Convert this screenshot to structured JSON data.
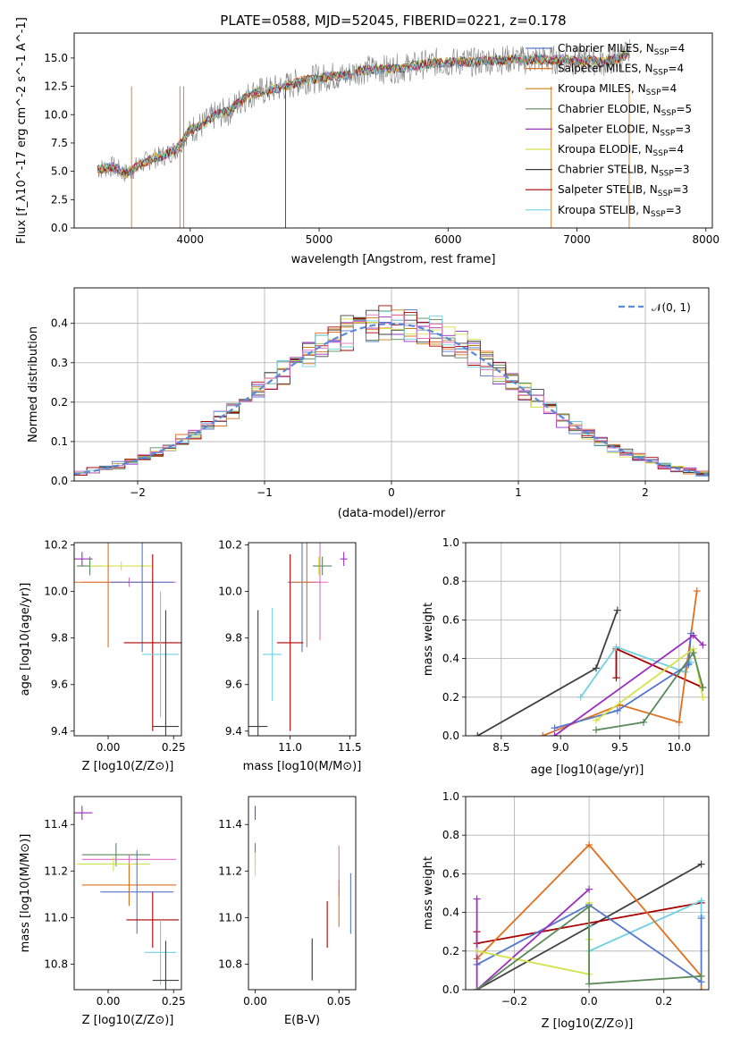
{
  "colors": {
    "Chabrier MILES": "#5577cc",
    "Salpeter MILES": "#e07020",
    "Kroupa MILES": "#c88010",
    "Chabrier ELODIE": "#5a8a5a",
    "Salpeter ELODIE": "#9b2fbf",
    "Kroupa ELODIE": "#d4e24a",
    "Chabrier STELIB": "#404040",
    "Salpeter STELIB": "#aa0000",
    "Kroupa STELIB": "#70d0e0",
    "pink": "#e070c0",
    "gauss": "#5b8ad8",
    "observed": "#808080"
  },
  "chart_data": [
    {
      "id": "spectrum",
      "type": "line",
      "title": "PLATE=0588, MJD=52045, FIBERID=0221, z=0.178",
      "xlabel": "wavelength [Angstrom, rest frame]",
      "ylabel": "Flux [f_λ10^-17 erg cm^-2 s^-1 A^-1]",
      "xlim": [
        3100,
        8050
      ],
      "ylim": [
        0,
        17.2
      ],
      "xticks": [
        "4000",
        "5000",
        "6000",
        "7000",
        "8000"
      ],
      "yticks": [
        "0.0",
        "2.5",
        "5.0",
        "7.5",
        "10.0",
        "12.5",
        "15.0"
      ],
      "grid": false,
      "legend_position": "right",
      "legend": [
        {
          "label": "Chabrier MILES, N",
          "sub": "SSP",
          "suffix": "=4",
          "color_key": "Chabrier MILES"
        },
        {
          "label": "Salpeter MILES, N",
          "sub": "SSP",
          "suffix": "=4",
          "color_key": "Salpeter MILES"
        },
        {
          "label": "Kroupa MILES, N",
          "sub": "SSP",
          "suffix": "=4",
          "color_key": "Kroupa MILES"
        },
        {
          "label": "Chabrier ELODIE, N",
          "sub": "SSP",
          "suffix": "=5",
          "color_key": "Chabrier ELODIE"
        },
        {
          "label": "Salpeter ELODIE, N",
          "sub": "SSP",
          "suffix": "=3",
          "color_key": "Salpeter ELODIE"
        },
        {
          "label": "Kroupa ELODIE, N",
          "sub": "SSP",
          "suffix": "=4",
          "color_key": "Kroupa ELODIE"
        },
        {
          "label": "Chabrier STELIB, N",
          "sub": "SSP",
          "suffix": "=3",
          "color_key": "Chabrier STELIB"
        },
        {
          "label": "Salpeter STELIB, N",
          "sub": "SSP",
          "suffix": "=3",
          "color_key": "Salpeter STELIB"
        },
        {
          "label": "Kroupa STELIB, N",
          "sub": "SSP",
          "suffix": "=3",
          "color_key": "Kroupa STELIB"
        }
      ],
      "series": [
        {
          "x": [
            3280,
            3400,
            3500,
            3600,
            3700,
            3800,
            3900,
            4000,
            4100,
            4200,
            4300,
            4400,
            4500,
            4600,
            4700,
            4800,
            4900,
            5000,
            5100,
            5200,
            5300,
            5400,
            5500,
            5600,
            5700,
            5800,
            5900,
            6000,
            6100,
            6200,
            6300,
            6400,
            6500,
            6600,
            6700,
            6800,
            6900,
            7000,
            7100,
            7200,
            7300,
            7400
          ],
          "y": [
            5.2,
            5.4,
            4.8,
            5.5,
            6.1,
            6.4,
            7.0,
            8.7,
            9.1,
            10.0,
            10.3,
            11.3,
            12.0,
            12.1,
            12.4,
            12.7,
            13.1,
            13.2,
            13.4,
            13.4,
            13.9,
            14.0,
            14.0,
            14.1,
            14.2,
            14.4,
            14.6,
            14.6,
            14.7,
            14.6,
            14.8,
            14.8,
            14.9,
            14.8,
            14.9,
            14.8,
            14.9,
            14.7,
            14.8,
            14.6,
            14.9,
            15.4
          ]
        }
      ]
    },
    {
      "id": "residuals",
      "type": "histogram",
      "xlabel": "(data-model)/error",
      "ylabel": "Normed distribution",
      "xlim": [
        -2.5,
        2.5
      ],
      "ylim": [
        0,
        0.49
      ],
      "xticks": [
        "−2",
        "−1",
        "0",
        "1",
        "2"
      ],
      "yticks": [
        "0.0",
        "0.1",
        "0.2",
        "0.3",
        "0.4"
      ],
      "grid": true,
      "legend_position": "top-right",
      "legend": [
        {
          "label": "𝒩(0, 1)",
          "color_key": "gauss"
        }
      ],
      "gaussian": {
        "mu": 0,
        "sigma": 1
      }
    },
    {
      "id": "age-vs-Z",
      "type": "errorbar",
      "xlabel": "Z [log10(Z/Z⊙)]",
      "ylabel": "age [log10(age/yr)]",
      "xlim": [
        -0.13,
        0.28
      ],
      "ylim": [
        9.38,
        10.21
      ],
      "xticks": [
        "0.00",
        "0.25"
      ],
      "yticks": [
        "9.4",
        "9.6",
        "9.8",
        "10.0",
        "10.2"
      ],
      "points": [
        {
          "color_key": "Salpeter ELODIE",
          "x": -0.1,
          "xerr": 0.04,
          "y": 10.14,
          "yerr": 0.03
        },
        {
          "color_key": "Chabrier ELODIE",
          "x": -0.07,
          "xerr": 0.05,
          "y": 10.11,
          "yerr": 0.04
        },
        {
          "color_key": "Kroupa ELODIE",
          "x": 0.05,
          "xerr": 0.12,
          "y": 10.11,
          "yerr": 0.02
        },
        {
          "color_key": "pink",
          "x": 0.08,
          "xerr": 0.18,
          "y": 10.04,
          "yerr": 0.02
        },
        {
          "color_key": "Salpeter MILES",
          "x": 0.0,
          "xerr": 0.18,
          "y": 10.04,
          "yerr": 0.28
        },
        {
          "color_key": "Chabrier MILES",
          "x": 0.13,
          "xerr": 0.12,
          "y": 10.04,
          "yerr": 0.3
        },
        {
          "color_key": "Salpeter STELIB",
          "x": 0.17,
          "xerr": 0.11,
          "y": 9.78,
          "yerr": 0.38
        },
        {
          "color_key": "Kroupa STELIB",
          "x": 0.2,
          "xerr": 0.07,
          "y": 9.73,
          "yerr": 0.27
        },
        {
          "color_key": "Chabrier STELIB",
          "x": 0.22,
          "xerr": 0.05,
          "y": 9.42,
          "yerr": 0.5
        }
      ]
    },
    {
      "id": "age-vs-mass",
      "type": "errorbar",
      "xlabel": "mass [log10(M/M⊙)]",
      "ylabel": "",
      "xlim": [
        10.65,
        11.55
      ],
      "ylim": [
        9.38,
        10.21
      ],
      "xticks": [
        "11.0",
        "11.5"
      ],
      "yticks": [
        "9.4",
        "9.6",
        "9.8",
        "10.0",
        "10.2"
      ],
      "points": [
        {
          "color_key": "Salpeter ELODIE",
          "x": 11.45,
          "xerr": 0.03,
          "y": 10.14,
          "yerr": 0.03
        },
        {
          "color_key": "Kroupa ELODIE",
          "x": 11.24,
          "xerr": 0.02,
          "y": 10.11,
          "yerr": 0.04
        },
        {
          "color_key": "Chabrier ELODIE",
          "x": 11.27,
          "xerr": 0.08,
          "y": 10.11,
          "yerr": 0.04
        },
        {
          "color_key": "Chabrier MILES",
          "x": 11.1,
          "xerr": 0.12,
          "y": 10.04,
          "yerr": 0.3
        },
        {
          "color_key": "Salpeter MILES",
          "x": 11.14,
          "xerr": 0.12,
          "y": 10.04,
          "yerr": 0.28
        },
        {
          "color_key": "pink",
          "x": 11.25,
          "xerr": 0.07,
          "y": 10.04,
          "yerr": 0.25
        },
        {
          "color_key": "Salpeter STELIB",
          "x": 11.0,
          "xerr": 0.11,
          "y": 9.78,
          "yerr": 0.38
        },
        {
          "color_key": "Kroupa STELIB",
          "x": 10.85,
          "xerr": 0.08,
          "y": 9.73,
          "yerr": 0.2
        },
        {
          "color_key": "Chabrier STELIB",
          "x": 10.73,
          "xerr": 0.08,
          "y": 9.42,
          "yerr": 0.5
        }
      ]
    },
    {
      "id": "weight-vs-age",
      "type": "line",
      "xlabel": "age [log10(age/yr)]",
      "ylabel": "mass weight",
      "xlim": [
        8.2,
        10.25
      ],
      "ylim": [
        0,
        1
      ],
      "xticks": [
        "8.5",
        "9.0",
        "9.5",
        "10.0"
      ],
      "yticks": [
        "0.0",
        "0.2",
        "0.4",
        "0.6",
        "0.8",
        "1.0"
      ],
      "grid": true,
      "series": [
        {
          "color_key": "Chabrier STELIB",
          "x": [
            8.3,
            9.3,
            9.48
          ],
          "y": [
            0.0,
            0.35,
            0.65
          ]
        },
        {
          "color_key": "Salpeter STELIB",
          "x": [
            9.47,
            9.47,
            10.2
          ],
          "y": [
            0.3,
            0.45,
            0.25
          ]
        },
        {
          "color_key": "Kroupa STELIB",
          "x": [
            9.17,
            9.47,
            10.05,
            10.1
          ],
          "y": [
            0.2,
            0.46,
            0.33,
            0.38
          ]
        },
        {
          "color_key": "Salpeter MILES",
          "x": [
            8.85,
            9.5,
            10.0,
            10.15
          ],
          "y": [
            0.0,
            0.16,
            0.07,
            0.75
          ]
        },
        {
          "color_key": "Chabrier MILES",
          "x": [
            8.95,
            9.48,
            10.08,
            10.1
          ],
          "y": [
            0.04,
            0.13,
            0.37,
            0.53
          ]
        },
        {
          "color_key": "Salpeter ELODIE",
          "x": [
            8.95,
            10.12,
            10.2
          ],
          "y": [
            0.0,
            0.52,
            0.47
          ]
        },
        {
          "color_key": "Kroupa ELODIE",
          "x": [
            9.3,
            10.12,
            10.2
          ],
          "y": [
            0.08,
            0.45,
            0.2
          ]
        },
        {
          "color_key": "Chabrier ELODIE",
          "x": [
            9.3,
            9.7,
            10.12,
            10.2
          ],
          "y": [
            0.03,
            0.07,
            0.43,
            0.25
          ]
        }
      ]
    },
    {
      "id": "mass-vs-Z",
      "type": "errorbar",
      "xlabel": "Z [log10(Z/Z⊙)]",
      "ylabel": "mass [log10(M/M⊙)]",
      "xlim": [
        -0.13,
        0.28
      ],
      "ylim": [
        10.69,
        11.52
      ],
      "xticks": [
        "0.00",
        "0.25"
      ],
      "yticks": [
        "10.8",
        "11.0",
        "11.2",
        "11.4"
      ],
      "points": [
        {
          "color_key": "Salpeter ELODIE",
          "x": -0.1,
          "xerr": 0.04,
          "y": 11.45,
          "yerr": 0.03
        },
        {
          "color_key": "Chabrier ELODIE",
          "x": 0.03,
          "xerr": 0.13,
          "y": 11.27,
          "yerr": 0.05
        },
        {
          "color_key": "pink",
          "x": 0.08,
          "xerr": 0.18,
          "y": 11.25,
          "yerr": 0.02
        },
        {
          "color_key": "Kroupa ELODIE",
          "x": 0.02,
          "xerr": 0.14,
          "y": 11.23,
          "yerr": 0.03
        },
        {
          "color_key": "Salpeter MILES",
          "x": 0.08,
          "xerr": 0.18,
          "y": 11.14,
          "yerr": 0.09
        },
        {
          "color_key": "Chabrier MILES",
          "x": 0.11,
          "xerr": 0.14,
          "y": 11.11,
          "yerr": 0.18
        },
        {
          "color_key": "Salpeter STELIB",
          "x": 0.17,
          "xerr": 0.1,
          "y": 10.99,
          "yerr": 0.12
        },
        {
          "color_key": "Kroupa STELIB",
          "x": 0.2,
          "xerr": 0.06,
          "y": 10.85,
          "yerr": 0.14
        },
        {
          "color_key": "Chabrier STELIB",
          "x": 0.22,
          "xerr": 0.05,
          "y": 10.73,
          "yerr": 0.17
        }
      ]
    },
    {
      "id": "mass-vs-ebv",
      "type": "errorbar",
      "xlabel": "E(B-V)",
      "ylabel": "",
      "xlim": [
        -0.004,
        0.06
      ],
      "ylim": [
        10.69,
        11.52
      ],
      "xticks": [
        "0.00",
        "0.05"
      ],
      "yticks": [
        "10.8",
        "11.0",
        "11.2",
        "11.4"
      ],
      "points": [
        {
          "color_key": "Salpeter ELODIE",
          "x": 0.0,
          "xerr": 0.0,
          "y": 11.45,
          "yerr": 0.03
        },
        {
          "color_key": "Chabrier ELODIE",
          "x": 0.0,
          "xerr": 0.0,
          "y": 11.27,
          "yerr": 0.05
        },
        {
          "color_key": "Kroupa ELODIE",
          "x": 0.0,
          "xerr": 0.0,
          "y": 11.23,
          "yerr": 0.05
        },
        {
          "color_key": "pink",
          "x": 0.05,
          "xerr": 0.0,
          "y": 11.2,
          "yerr": 0.11
        },
        {
          "color_key": "Salpeter MILES",
          "x": 0.05,
          "xerr": 0.0,
          "y": 11.06,
          "yerr": 0.1
        },
        {
          "color_key": "Chabrier MILES",
          "x": 0.057,
          "xerr": 0.0,
          "y": 11.06,
          "yerr": 0.13
        },
        {
          "color_key": "Salpeter STELIB",
          "x": 0.043,
          "xerr": 0.0,
          "y": 10.97,
          "yerr": 0.1
        },
        {
          "color_key": "Kroupa STELIB",
          "x": 0.034,
          "xerr": 0.0,
          "y": 10.82,
          "yerr": 0.09
        },
        {
          "color_key": "Chabrier STELIB",
          "x": 0.034,
          "xerr": 0.0,
          "y": 10.82,
          "yerr": 0.09
        }
      ]
    },
    {
      "id": "weight-vs-Z",
      "type": "line",
      "xlabel": "Z [log10(Z/Z⊙)]",
      "ylabel": "mass weight",
      "xlim": [
        -0.33,
        0.32
      ],
      "ylim": [
        0,
        1
      ],
      "xticks": [
        "−0.2",
        "0.0",
        "0.2"
      ],
      "yticks": [
        "0.0",
        "0.2",
        "0.4",
        "0.6",
        "0.8",
        "1.0"
      ],
      "grid": true,
      "series": [
        {
          "color_key": "Chabrier STELIB",
          "x": [
            -0.3,
            0.3
          ],
          "y": [
            0.0,
            0.65
          ]
        },
        {
          "color_key": "Salpeter STELIB",
          "x": [
            -0.3,
            -0.3,
            0.3
          ],
          "y": [
            0.3,
            0.24,
            0.45
          ]
        },
        {
          "color_key": "Kroupa STELIB",
          "x": [
            0.0,
            0.0,
            0.3,
            0.3
          ],
          "y": [
            0.33,
            0.2,
            0.46,
            0.38
          ]
        },
        {
          "color_key": "Salpeter MILES",
          "x": [
            -0.3,
            0.0,
            0.3,
            0.3
          ],
          "y": [
            0.16,
            0.75,
            0.07,
            0.0
          ]
        },
        {
          "color_key": "Chabrier MILES",
          "x": [
            -0.3,
            0.0,
            0.3,
            0.3
          ],
          "y": [
            0.13,
            0.44,
            0.04,
            0.37
          ]
        },
        {
          "color_key": "Salpeter ELODIE",
          "x": [
            -0.3,
            -0.3,
            0.0
          ],
          "y": [
            0.47,
            0.0,
            0.52
          ]
        },
        {
          "color_key": "Kroupa ELODIE",
          "x": [
            -0.3,
            0.0,
            0.0,
            0.0
          ],
          "y": [
            0.2,
            0.08,
            0.26,
            0.45
          ]
        },
        {
          "color_key": "Chabrier ELODIE",
          "x": [
            -0.3,
            0.0,
            0.0,
            0.3
          ],
          "y": [
            0.0,
            0.43,
            0.03,
            0.07
          ]
        }
      ]
    }
  ]
}
